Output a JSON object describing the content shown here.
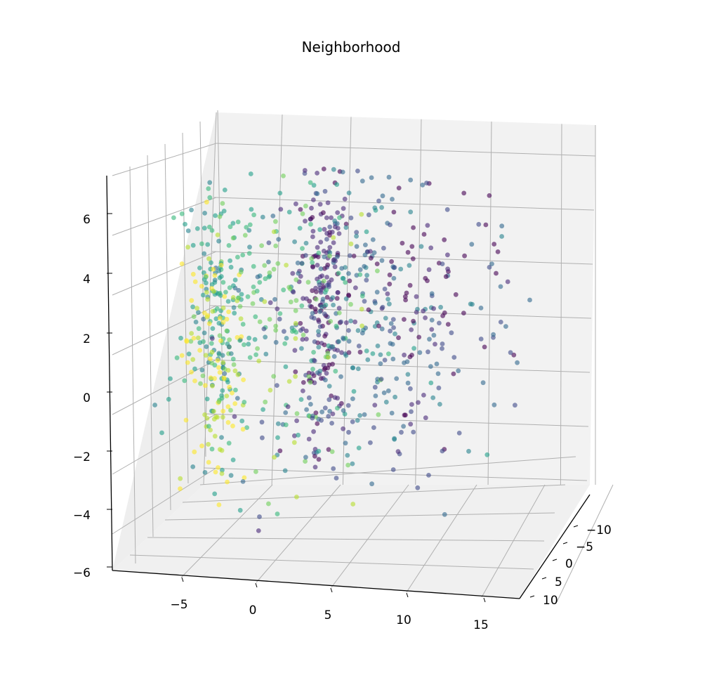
{
  "chart_data": {
    "type": "scatter",
    "projection": "3d",
    "title": "Neighborhood",
    "xlabel": "",
    "ylabel": "",
    "zlabel": "",
    "x_ticks": [
      "−5",
      "0",
      "5",
      "10",
      "15"
    ],
    "y_ticks": [
      "−10",
      "−5",
      "0",
      "5",
      "10"
    ],
    "z_ticks": [
      "6",
      "4",
      "2",
      "0",
      "−2",
      "−4",
      "−6"
    ],
    "xlim": [
      -9,
      17
    ],
    "ylim": [
      -12,
      12
    ],
    "zlim": [
      -6,
      7
    ],
    "grid": true,
    "colormap": "viridis",
    "color_range_hex": [
      "#440154",
      "#3b528b",
      "#21918c",
      "#5ec962",
      "#fde725"
    ],
    "point_alpha": 0.6,
    "num_points": 1000,
    "pane_color": "#f2f2f2",
    "grid_color": "#b0b0b0"
  }
}
